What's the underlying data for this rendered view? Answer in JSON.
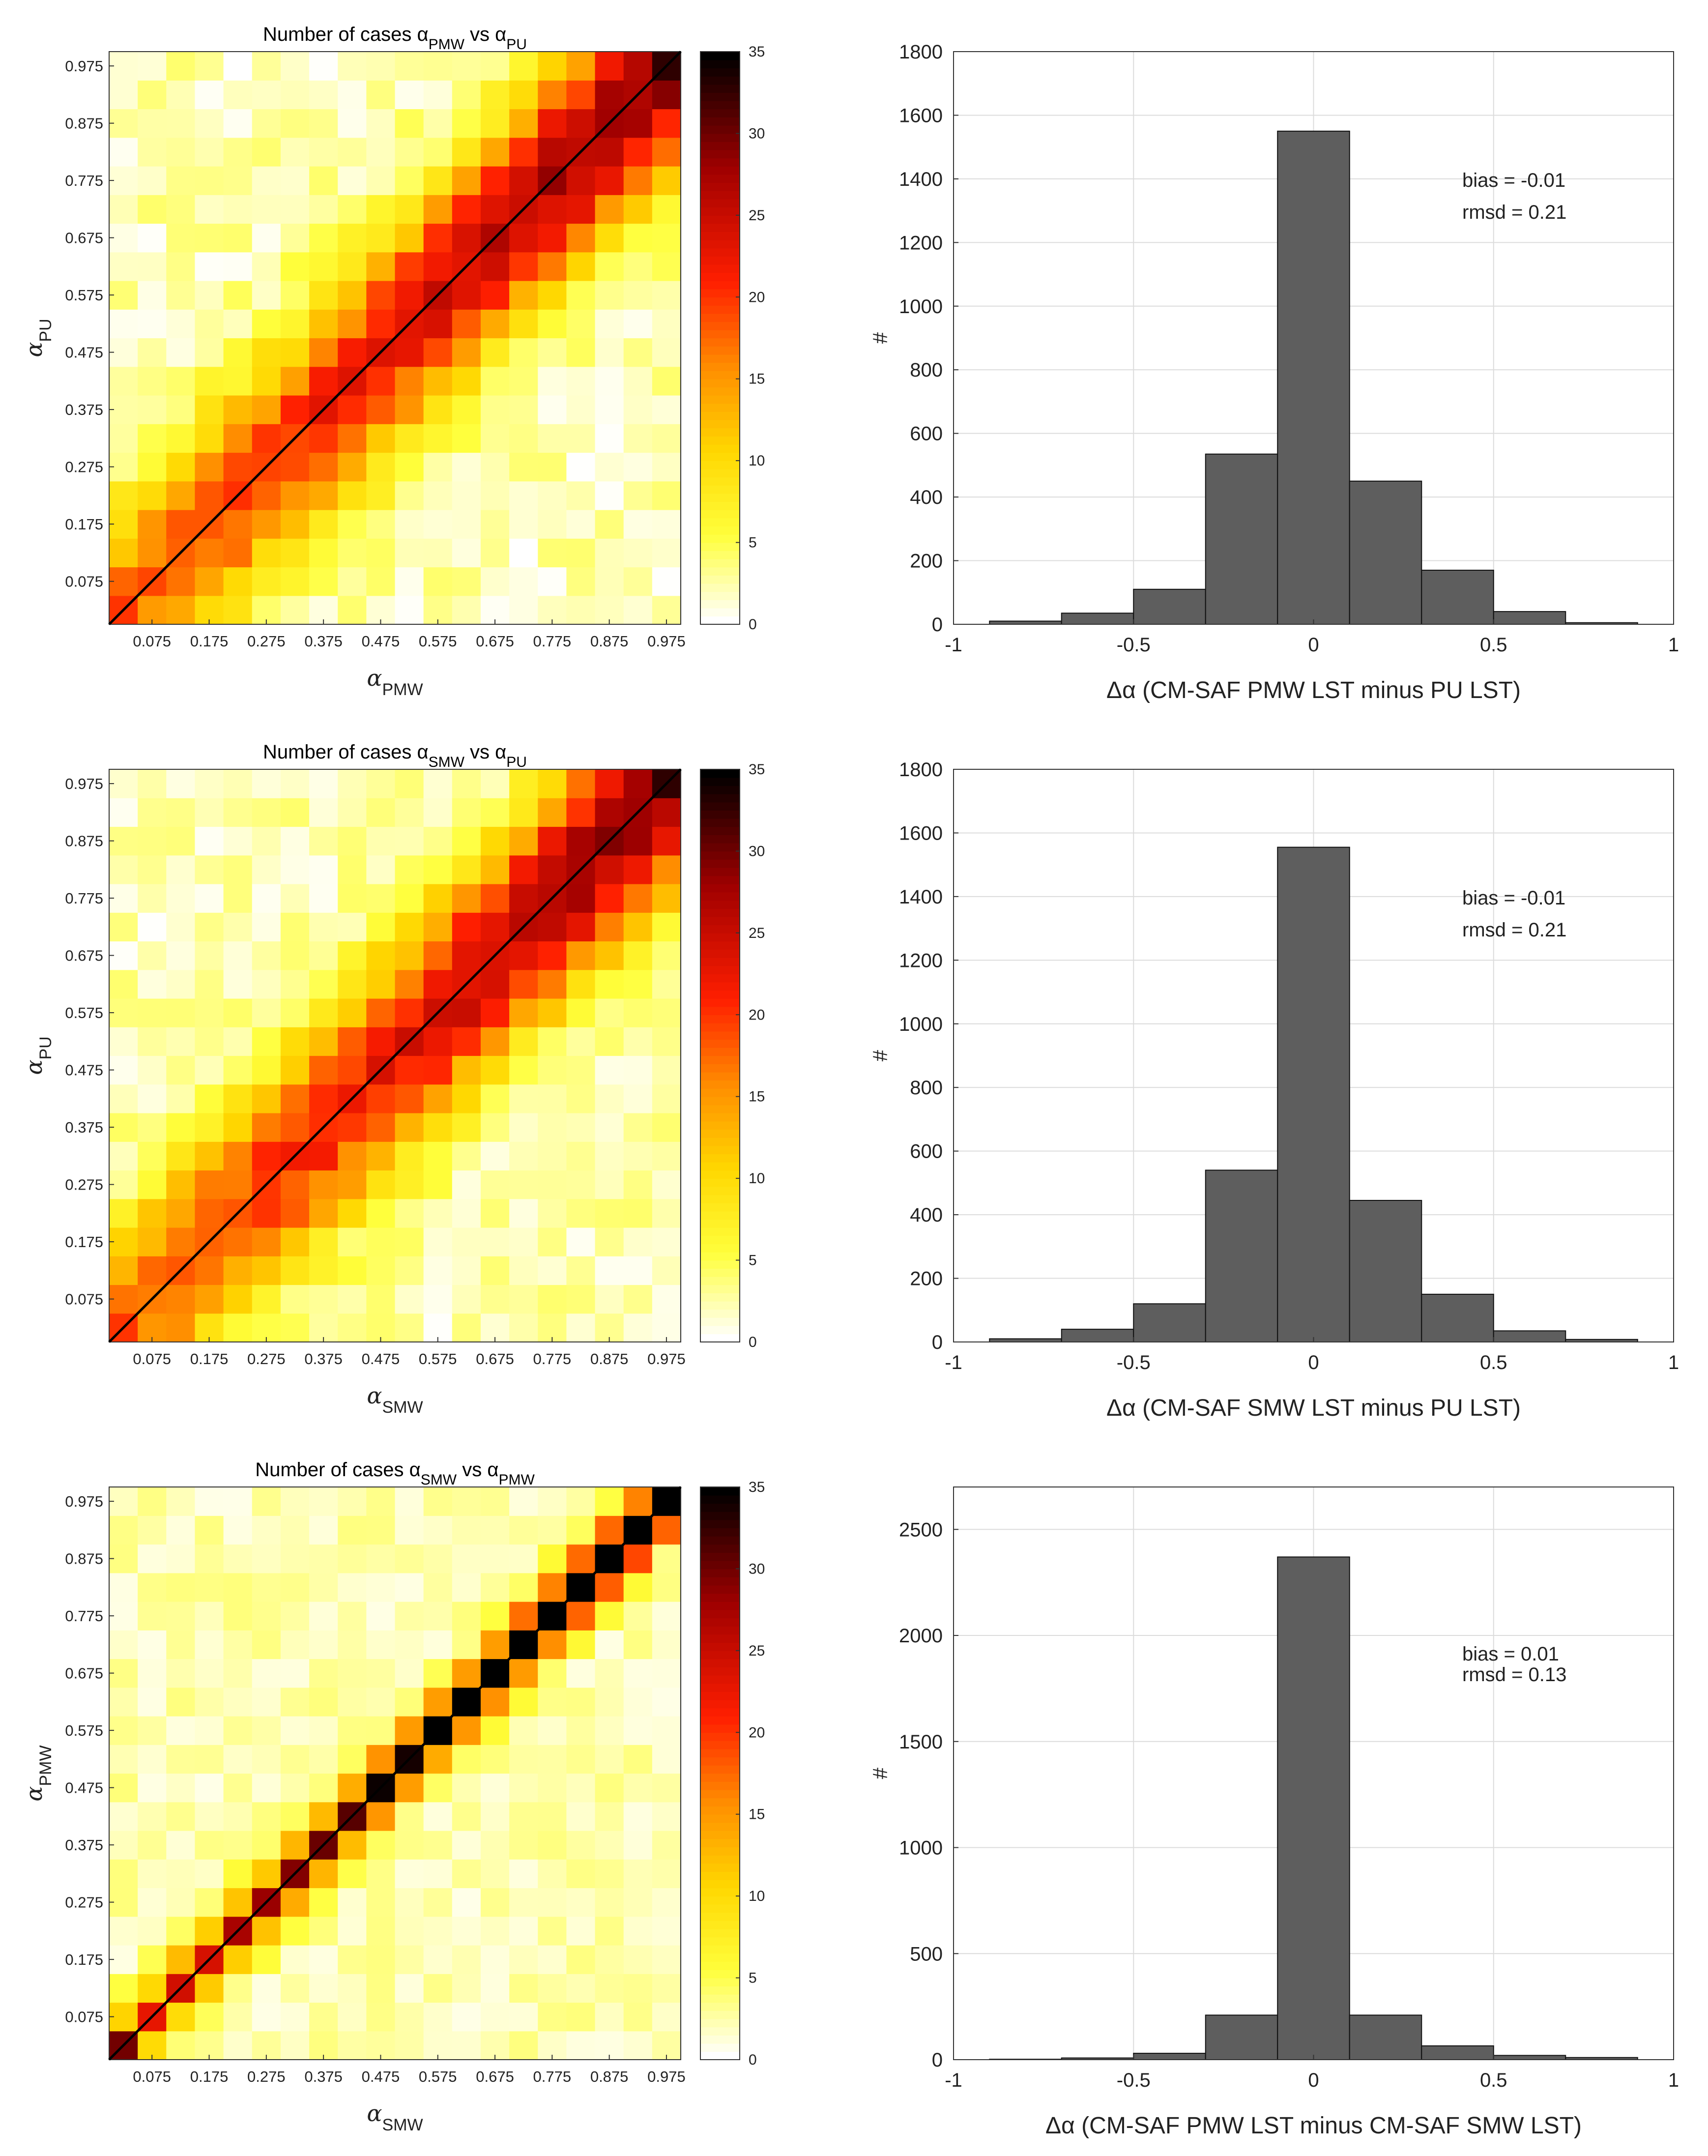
{
  "chart_data": [
    {
      "type": "heatmap",
      "title": "Number of cases αPMW vs αPU",
      "title_text": "Number of cases",
      "title_a": "PMW",
      "title_vs": "vs",
      "title_b": "PU",
      "xlabel": "PMW",
      "ylabel": "PU",
      "axis_symbol": "α",
      "x_ticks": [
        "0.075",
        "0.175",
        "0.275",
        "0.375",
        "0.475",
        "0.575",
        "0.675",
        "0.775",
        "0.875",
        "0.975"
      ],
      "y_ticks": [
        "0.075",
        "0.175",
        "0.275",
        "0.375",
        "0.475",
        "0.575",
        "0.675",
        "0.775",
        "0.875",
        "0.975"
      ],
      "xlim": [
        0,
        1
      ],
      "ylim": [
        0,
        1
      ],
      "bins": 20,
      "diagonal": true,
      "pattern": "broad",
      "colorbar": {
        "min": 0,
        "max": 35,
        "ticks": [
          "0",
          "5",
          "10",
          "15",
          "20",
          "25",
          "30",
          "35"
        ],
        "colormap": "hot-reversed"
      }
    },
    {
      "type": "bar",
      "subtype": "histogram",
      "bin_edges": [
        -0.9,
        -0.7,
        -0.5,
        -0.3,
        -0.1,
        0.1,
        0.3,
        0.5,
        0.7,
        0.9
      ],
      "values": [
        10,
        35,
        110,
        535,
        1550,
        450,
        170,
        40,
        5
      ],
      "xlim": [
        -1,
        1
      ],
      "ylim": [
        0,
        1800
      ],
      "x_ticks": [
        "-1",
        "-0.5",
        "0",
        "0.5",
        "1"
      ],
      "y_ticks": [
        "0",
        "200",
        "400",
        "600",
        "800",
        "1000",
        "1200",
        "1400",
        "1600",
        "1800"
      ],
      "xlabel": "Δα  (CM-SAF PMW LST minus PU LST)",
      "ylabel": "#",
      "annotations": [
        "bias = -0.01",
        "rmsd = 0.21"
      ]
    },
    {
      "type": "heatmap",
      "title": "Number of cases αSMW vs αPU",
      "title_text": "Number of cases",
      "title_a": "SMW",
      "title_vs": "vs",
      "title_b": "PU",
      "xlabel": "SMW",
      "ylabel": "PU",
      "axis_symbol": "α",
      "x_ticks": [
        "0.075",
        "0.175",
        "0.275",
        "0.375",
        "0.475",
        "0.575",
        "0.675",
        "0.775",
        "0.875",
        "0.975"
      ],
      "y_ticks": [
        "0.075",
        "0.175",
        "0.275",
        "0.375",
        "0.475",
        "0.575",
        "0.675",
        "0.775",
        "0.875",
        "0.975"
      ],
      "xlim": [
        0,
        1
      ],
      "ylim": [
        0,
        1
      ],
      "bins": 20,
      "diagonal": true,
      "pattern": "broad",
      "colorbar": {
        "min": 0,
        "max": 35,
        "ticks": [
          "0",
          "5",
          "10",
          "15",
          "20",
          "25",
          "30",
          "35"
        ],
        "colormap": "hot-reversed"
      }
    },
    {
      "type": "bar",
      "subtype": "histogram",
      "bin_edges": [
        -0.9,
        -0.7,
        -0.5,
        -0.3,
        -0.1,
        0.1,
        0.3,
        0.5,
        0.7,
        0.9
      ],
      "values": [
        10,
        40,
        120,
        540,
        1555,
        445,
        150,
        35,
        8
      ],
      "xlim": [
        -1,
        1
      ],
      "ylim": [
        0,
        1800
      ],
      "x_ticks": [
        "-1",
        "-0.5",
        "0",
        "0.5",
        "1"
      ],
      "y_ticks": [
        "0",
        "200",
        "400",
        "600",
        "800",
        "1000",
        "1200",
        "1400",
        "1600",
        "1800"
      ],
      "xlabel": "Δα  (CM-SAF SMW LST minus PU LST)",
      "ylabel": "#",
      "annotations": [
        "bias = -0.01",
        "rmsd = 0.21"
      ]
    },
    {
      "type": "heatmap",
      "title": "Number of cases αSMW vs αPMW",
      "title_text": "Number of cases",
      "title_a": "SMW",
      "title_vs": "vs",
      "title_b": "PMW",
      "xlabel": "SMW",
      "ylabel": "PMW",
      "axis_symbol": "α",
      "x_ticks": [
        "0.075",
        "0.175",
        "0.275",
        "0.375",
        "0.475",
        "0.575",
        "0.675",
        "0.775",
        "0.875",
        "0.975"
      ],
      "y_ticks": [
        "0.075",
        "0.175",
        "0.275",
        "0.375",
        "0.475",
        "0.575",
        "0.675",
        "0.775",
        "0.875",
        "0.975"
      ],
      "xlim": [
        0,
        1
      ],
      "ylim": [
        0,
        1
      ],
      "bins": 20,
      "diagonal": true,
      "pattern": "narrow",
      "colorbar": {
        "min": 0,
        "max": 35,
        "ticks": [
          "0",
          "5",
          "10",
          "15",
          "20",
          "25",
          "30",
          "35"
        ],
        "colormap": "hot-reversed"
      }
    },
    {
      "type": "bar",
      "subtype": "histogram",
      "bin_edges": [
        -0.9,
        -0.7,
        -0.5,
        -0.3,
        -0.1,
        0.1,
        0.3,
        0.5,
        0.7,
        0.9
      ],
      "values": [
        2,
        8,
        30,
        210,
        2370,
        210,
        65,
        20,
        10
      ],
      "xlim": [
        -1,
        1
      ],
      "ylim": [
        0,
        2700
      ],
      "x_ticks": [
        "-1",
        "-0.5",
        "0",
        "0.5",
        "1"
      ],
      "y_ticks": [
        "0",
        "500",
        "1000",
        "1500",
        "2000",
        "2500"
      ],
      "xlabel": "Δα  (CM-SAF PMW LST minus CM-SAF SMW LST)",
      "ylabel": "#",
      "annotations": [
        "bias = 0.01",
        "rmsd = 0.13"
      ]
    }
  ]
}
